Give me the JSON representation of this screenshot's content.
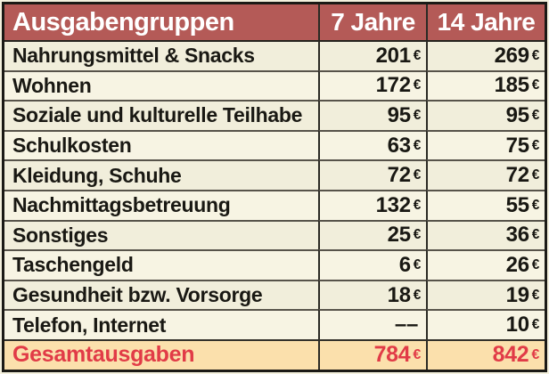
{
  "table": {
    "header": {
      "groups": "Ausgabengruppen",
      "age7": "7 Jahre",
      "age14": "14 Jahre"
    },
    "currency": "€",
    "rows": [
      {
        "label": "Nahrungsmittel & Snacks",
        "v7": "201",
        "u7": "€",
        "v14": "269",
        "u14": "€"
      },
      {
        "label": "Wohnen",
        "v7": "172",
        "u7": "€",
        "v14": "185",
        "u14": "€"
      },
      {
        "label": "Soziale und kulturelle Teilhabe",
        "v7": "95",
        "u7": "€",
        "v14": "95",
        "u14": "€"
      },
      {
        "label": "Schulkosten",
        "v7": "63",
        "u7": "€",
        "v14": "75",
        "u14": "€"
      },
      {
        "label": "Kleidung, Schuhe",
        "v7": "72",
        "u7": "€",
        "v14": "72",
        "u14": "€"
      },
      {
        "label": "Nachmittagsbetreuung",
        "v7": "132",
        "u7": "€",
        "v14": "55",
        "u14": "€"
      },
      {
        "label": "Sonstiges",
        "v7": "25",
        "u7": "€",
        "v14": "36",
        "u14": "€"
      },
      {
        "label": "Taschengeld",
        "v7": "6",
        "u7": "€",
        "v14": "26",
        "u14": "€"
      },
      {
        "label": "Gesundheit bzw. Vorsorge",
        "v7": "18",
        "u7": "€",
        "v14": "19",
        "u14": "€"
      },
      {
        "label": "Telefon, Internet",
        "v7": "––",
        "u7": "",
        "v14": "10",
        "u14": "€"
      }
    ],
    "total": {
      "label": "Gesamtausgaben",
      "v7": "784",
      "u7": "€",
      "v14": "842",
      "u14": "€"
    },
    "colors": {
      "header_bg": "#b45a57",
      "header_text": "#ffffff",
      "row_bg": "#f4f1de",
      "row_bg_alt": "#f7f4e3",
      "total_bg": "#fbe0ac",
      "total_text": "#e13b47",
      "body_text": "#191813",
      "outer_border": "#1b1a16",
      "grid_line": "#57534a"
    }
  },
  "chart_data": {
    "type": "table",
    "title": "Ausgabengruppen",
    "columns": [
      "Ausgabengruppen",
      "7 Jahre",
      "14 Jahre"
    ],
    "unit": "€",
    "rows": [
      [
        "Nahrungsmittel & Snacks",
        201,
        269
      ],
      [
        "Wohnen",
        172,
        185
      ],
      [
        "Soziale und kulturelle Teilhabe",
        95,
        95
      ],
      [
        "Schulkosten",
        63,
        75
      ],
      [
        "Kleidung, Schuhe",
        72,
        72
      ],
      [
        "Nachmittagsbetreuung",
        132,
        55
      ],
      [
        "Sonstiges",
        25,
        36
      ],
      [
        "Taschengeld",
        6,
        26
      ],
      [
        "Gesundheit bzw. Vorsorge",
        18,
        19
      ],
      [
        "Telefon, Internet",
        null,
        10
      ]
    ],
    "total_row": [
      "Gesamtausgaben",
      784,
      842
    ]
  }
}
